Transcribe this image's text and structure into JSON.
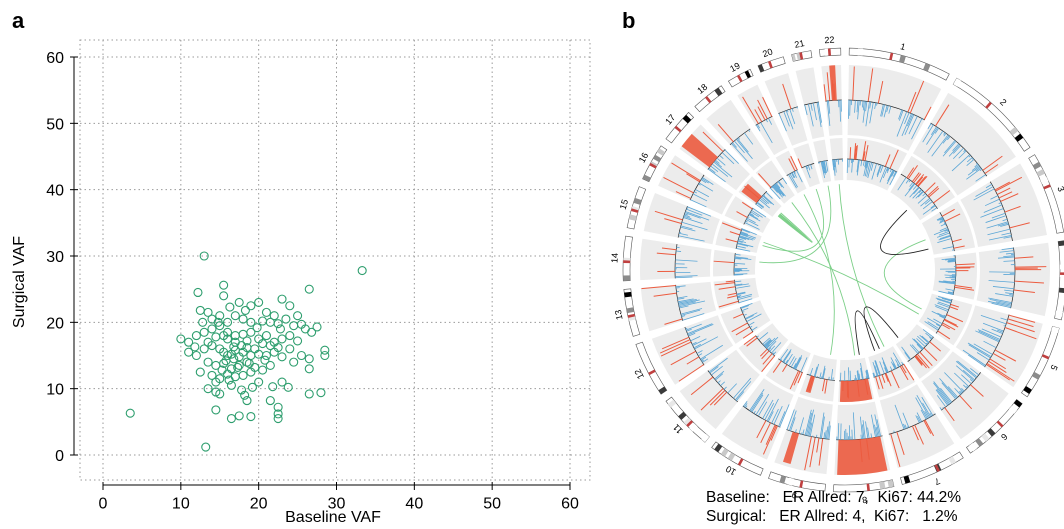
{
  "panels": {
    "a": "a",
    "b": "b"
  },
  "colors": {
    "scatter": "#2e9e6e",
    "grid": "#9a9a9a",
    "ring_bg": "#ececec",
    "blue": "#5aa6d6",
    "red": "#ec5b3f",
    "link_green": "#7ccf88",
    "link_black": "#222222"
  },
  "chart_data": [
    {
      "type": "scatter",
      "title": "",
      "xlabel": "Baseline VAF",
      "ylabel": "Surgical VAF",
      "xlim": [
        0,
        60
      ],
      "ylim": [
        0,
        60
      ],
      "x_ticks": [
        0,
        10,
        20,
        30,
        40,
        50,
        60
      ],
      "y_ticks": [
        0,
        10,
        20,
        30,
        40,
        50,
        60
      ],
      "grid": true,
      "marker": "open-circle",
      "points": [
        [
          3.5,
          6.3
        ],
        [
          13.2,
          1.2
        ],
        [
          13.0,
          30.0
        ],
        [
          33.3,
          27.8
        ],
        [
          26.5,
          25.0
        ],
        [
          15.5,
          25.6
        ],
        [
          12.2,
          24.5
        ],
        [
          15.5,
          24.0
        ],
        [
          17.5,
          23.0
        ],
        [
          19.0,
          22.5
        ],
        [
          20.0,
          23.0
        ],
        [
          23.0,
          23.5
        ],
        [
          24.0,
          22.5
        ],
        [
          21.0,
          21.5
        ],
        [
          22.0,
          21.0
        ],
        [
          17.0,
          21.0
        ],
        [
          14.0,
          20.5
        ],
        [
          15.0,
          21.0
        ],
        [
          16.0,
          20.0
        ],
        [
          18.0,
          20.5
        ],
        [
          19.0,
          20.0
        ],
        [
          20.5,
          20.2
        ],
        [
          21.5,
          20.0
        ],
        [
          22.5,
          19.8
        ],
        [
          24.5,
          19.5
        ],
        [
          25.5,
          19.7
        ],
        [
          26.0,
          19.0
        ],
        [
          27.5,
          19.3
        ],
        [
          12.5,
          21.8
        ],
        [
          13.5,
          21.5
        ],
        [
          10.0,
          17.5
        ],
        [
          11.0,
          17.0
        ],
        [
          12.0,
          18.0
        ],
        [
          13.0,
          18.5
        ],
        [
          14.0,
          19.0
        ],
        [
          15.0,
          19.5
        ],
        [
          16.0,
          18.5
        ],
        [
          17.0,
          18.0
        ],
        [
          18.0,
          18.2
        ],
        [
          19.0,
          18.5
        ],
        [
          20.0,
          17.5
        ],
        [
          21.0,
          18.0
        ],
        [
          22.0,
          17.0
        ],
        [
          23.0,
          17.5
        ],
        [
          24.0,
          18.0
        ],
        [
          25.0,
          17.2
        ],
        [
          11.0,
          15.5
        ],
        [
          12.0,
          15.0
        ],
        [
          13.0,
          16.0
        ],
        [
          14.0,
          16.5
        ],
        [
          15.0,
          16.0
        ],
        [
          15.5,
          15.5
        ],
        [
          16.0,
          15.0
        ],
        [
          16.5,
          15.2
        ],
        [
          17.0,
          15.8
        ],
        [
          17.5,
          14.8
        ],
        [
          18.0,
          15.5
        ],
        [
          18.5,
          16.2
        ],
        [
          19.0,
          15.0
        ],
        [
          19.5,
          16.0
        ],
        [
          20.0,
          15.2
        ],
        [
          21.0,
          15.0
        ],
        [
          22.0,
          15.5
        ],
        [
          23.0,
          14.8
        ],
        [
          24.0,
          16.0
        ],
        [
          13.5,
          14.0
        ],
        [
          14.5,
          13.5
        ],
        [
          15.5,
          13.8
        ],
        [
          16.5,
          13.0
        ],
        [
          17.5,
          13.5
        ],
        [
          18.5,
          14.0
        ],
        [
          19.5,
          13.2
        ],
        [
          12.5,
          12.5
        ],
        [
          14.0,
          12.0
        ],
        [
          15.0,
          11.5
        ],
        [
          16.0,
          12.2
        ],
        [
          17.0,
          11.8
        ],
        [
          18.0,
          12.0
        ],
        [
          14.5,
          11.0
        ],
        [
          16.5,
          10.5
        ],
        [
          20.0,
          11.0
        ],
        [
          23.0,
          11.0
        ],
        [
          26.5,
          14.5
        ],
        [
          26.5,
          13.0
        ],
        [
          28.5,
          15.8
        ],
        [
          28.5,
          15.0
        ],
        [
          28.0,
          9.4
        ],
        [
          26.5,
          9.2
        ],
        [
          13.5,
          10.0
        ],
        [
          14.5,
          9.5
        ],
        [
          15.0,
          9.2
        ],
        [
          18.5,
          8.2
        ],
        [
          21.5,
          8.2
        ],
        [
          22.5,
          7.2
        ],
        [
          14.5,
          6.8
        ],
        [
          17.5,
          5.9
        ],
        [
          16.5,
          5.5
        ],
        [
          19.0,
          5.8
        ],
        [
          22.5,
          5.5
        ],
        [
          22.5,
          6.2
        ],
        [
          25.5,
          15.0
        ],
        [
          24.5,
          14.0
        ],
        [
          19.0,
          12.5
        ],
        [
          20.5,
          12.8
        ],
        [
          21.5,
          13.5
        ],
        [
          17.0,
          17.0
        ],
        [
          18.5,
          17.2
        ],
        [
          16.0,
          17.5
        ],
        [
          15.5,
          18.0
        ],
        [
          14.5,
          17.8
        ],
        [
          13.5,
          17.0
        ],
        [
          21.5,
          16.5
        ],
        [
          22.5,
          16.2
        ],
        [
          20.5,
          16.8
        ],
        [
          16.8,
          16.3
        ],
        [
          17.8,
          16.5
        ],
        [
          19.8,
          19.2
        ],
        [
          23.5,
          20.5
        ],
        [
          18.3,
          21.8
        ],
        [
          16.3,
          22.3
        ],
        [
          14.8,
          20.0
        ],
        [
          22.8,
          19.0
        ],
        [
          25.0,
          21.0
        ],
        [
          26.8,
          18.5
        ],
        [
          12.8,
          20.0
        ],
        [
          11.8,
          16.3
        ],
        [
          15.8,
          14.2
        ],
        [
          16.8,
          14.5
        ],
        [
          17.3,
          13.2
        ],
        [
          18.8,
          13.8
        ],
        [
          15.3,
          12.8
        ],
        [
          16.2,
          11.3
        ],
        [
          20.8,
          14.3
        ],
        [
          21.8,
          10.3
        ],
        [
          23.8,
          10.2
        ],
        [
          17.8,
          9.8
        ],
        [
          18.2,
          9.0
        ],
        [
          19.2,
          10.2
        ]
      ]
    },
    {
      "type": "circos",
      "chromosomes": [
        "1",
        "2",
        "3",
        "4",
        "5",
        "6",
        "7",
        "8",
        "9",
        "10",
        "11",
        "12",
        "13",
        "14",
        "15",
        "16",
        "17",
        "18",
        "19",
        "20",
        "21",
        "22"
      ],
      "tracks": [
        "ideogram",
        "baseline copy number",
        "surgical copy number",
        "structural variant links"
      ],
      "annotation_lines": [
        "Baseline:   ER Allred: 7,  Ki67: 44.2%",
        "Surgical:   ER Allred: 4,  Ki67:   1.2%"
      ]
    }
  ]
}
